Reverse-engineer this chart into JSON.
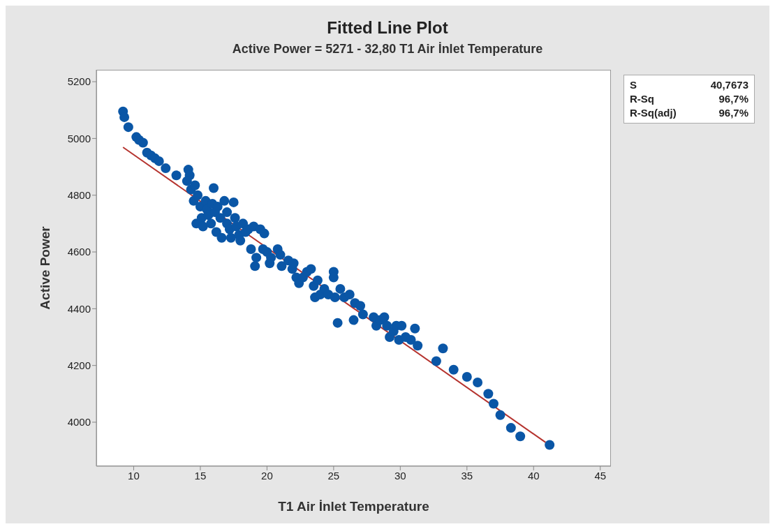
{
  "chart_data": {
    "type": "scatter",
    "title": "Fitted Line Plot",
    "subtitle": "Active Power = 5271 - 32,80 T1 Air İnlet Temperature",
    "xlabel": "T1 Air İnlet Temperature",
    "ylabel": "Active Power",
    "xlim": [
      7.2,
      45.8
    ],
    "xticks": [
      10,
      15,
      20,
      25,
      30,
      35,
      40,
      45
    ],
    "ylim": [
      3845,
      5242
    ],
    "yticks": [
      4000,
      4200,
      4400,
      4600,
      4800,
      5000,
      5200
    ],
    "grid": false,
    "annotations": [
      "S",
      "40,7673",
      "R-Sq",
      "96,7%",
      "R-Sq(adj)",
      "96,7%"
    ],
    "series": [
      {
        "marker": "circle",
        "color": "#0a56a6",
        "x": [
          9.2,
          9.3,
          9.6,
          10.2,
          10.4,
          10.7,
          11,
          11.3,
          11.6,
          11.9,
          12.4,
          13.2,
          14.1,
          14.2,
          14,
          14.3,
          14.6,
          14.5,
          14.8,
          14.7,
          15,
          15.1,
          15.2,
          15.4,
          15.5,
          15.6,
          15.8,
          15.9,
          16,
          16.1,
          16.2,
          16.3,
          16.5,
          16.6,
          16.8,
          17,
          17,
          17.2,
          17.3,
          17.5,
          17.6,
          17.7,
          17.9,
          18,
          18.2,
          18.4,
          18.6,
          18.8,
          19,
          19.1,
          19.2,
          19.5,
          19.8,
          19.7,
          20,
          20.2,
          20.3,
          20.8,
          21,
          21.1,
          21.6,
          21.9,
          22,
          22.2,
          22.4,
          22.7,
          23,
          23.3,
          23.5,
          23.6,
          23.8,
          24,
          24.3,
          24.6,
          25,
          25,
          25.1,
          25.3,
          25.5,
          25.8,
          26.2,
          26.5,
          26.6,
          27,
          27.2,
          28,
          28.2,
          28.5,
          28.8,
          29,
          29.2,
          29.5,
          29.7,
          29.9,
          30.1,
          30.4,
          30.8,
          31.1,
          31.3,
          32.7,
          33.2,
          34,
          35,
          35.8,
          36.6,
          37,
          37.5,
          38.3,
          39,
          41.2
        ],
        "values": [
          5095,
          5075,
          5040,
          5005,
          4995,
          4985,
          4950,
          4940,
          4930,
          4920,
          4895,
          4870,
          4890,
          4870,
          4850,
          4820,
          4835,
          4780,
          4800,
          4700,
          4760,
          4720,
          4690,
          4780,
          4750,
          4730,
          4700,
          4770,
          4825,
          4740,
          4670,
          4760,
          4720,
          4650,
          4780,
          4700,
          4740,
          4680,
          4650,
          4775,
          4720,
          4690,
          4660,
          4640,
          4700,
          4670,
          4680,
          4610,
          4690,
          4550,
          4580,
          4680,
          4665,
          4610,
          4600,
          4560,
          4580,
          4610,
          4590,
          4550,
          4570,
          4540,
          4560,
          4510,
          4490,
          4510,
          4530,
          4540,
          4480,
          4440,
          4500,
          4450,
          4470,
          4450,
          4530,
          4510,
          4440,
          4350,
          4470,
          4440,
          4450,
          4360,
          4420,
          4410,
          4380,
          4370,
          4340,
          4360,
          4370,
          4340,
          4300,
          4320,
          4340,
          4290,
          4340,
          4300,
          4290,
          4330,
          4270,
          4215,
          4260,
          4185,
          4160,
          4140,
          4100,
          4065,
          4025,
          3980,
          3950,
          3920
        ]
      },
      {
        "type": "line",
        "marker": "none",
        "color": "#b5332e",
        "x": [
          9.2,
          40.9
        ],
        "values": [
          4969,
          3929
        ]
      }
    ]
  }
}
